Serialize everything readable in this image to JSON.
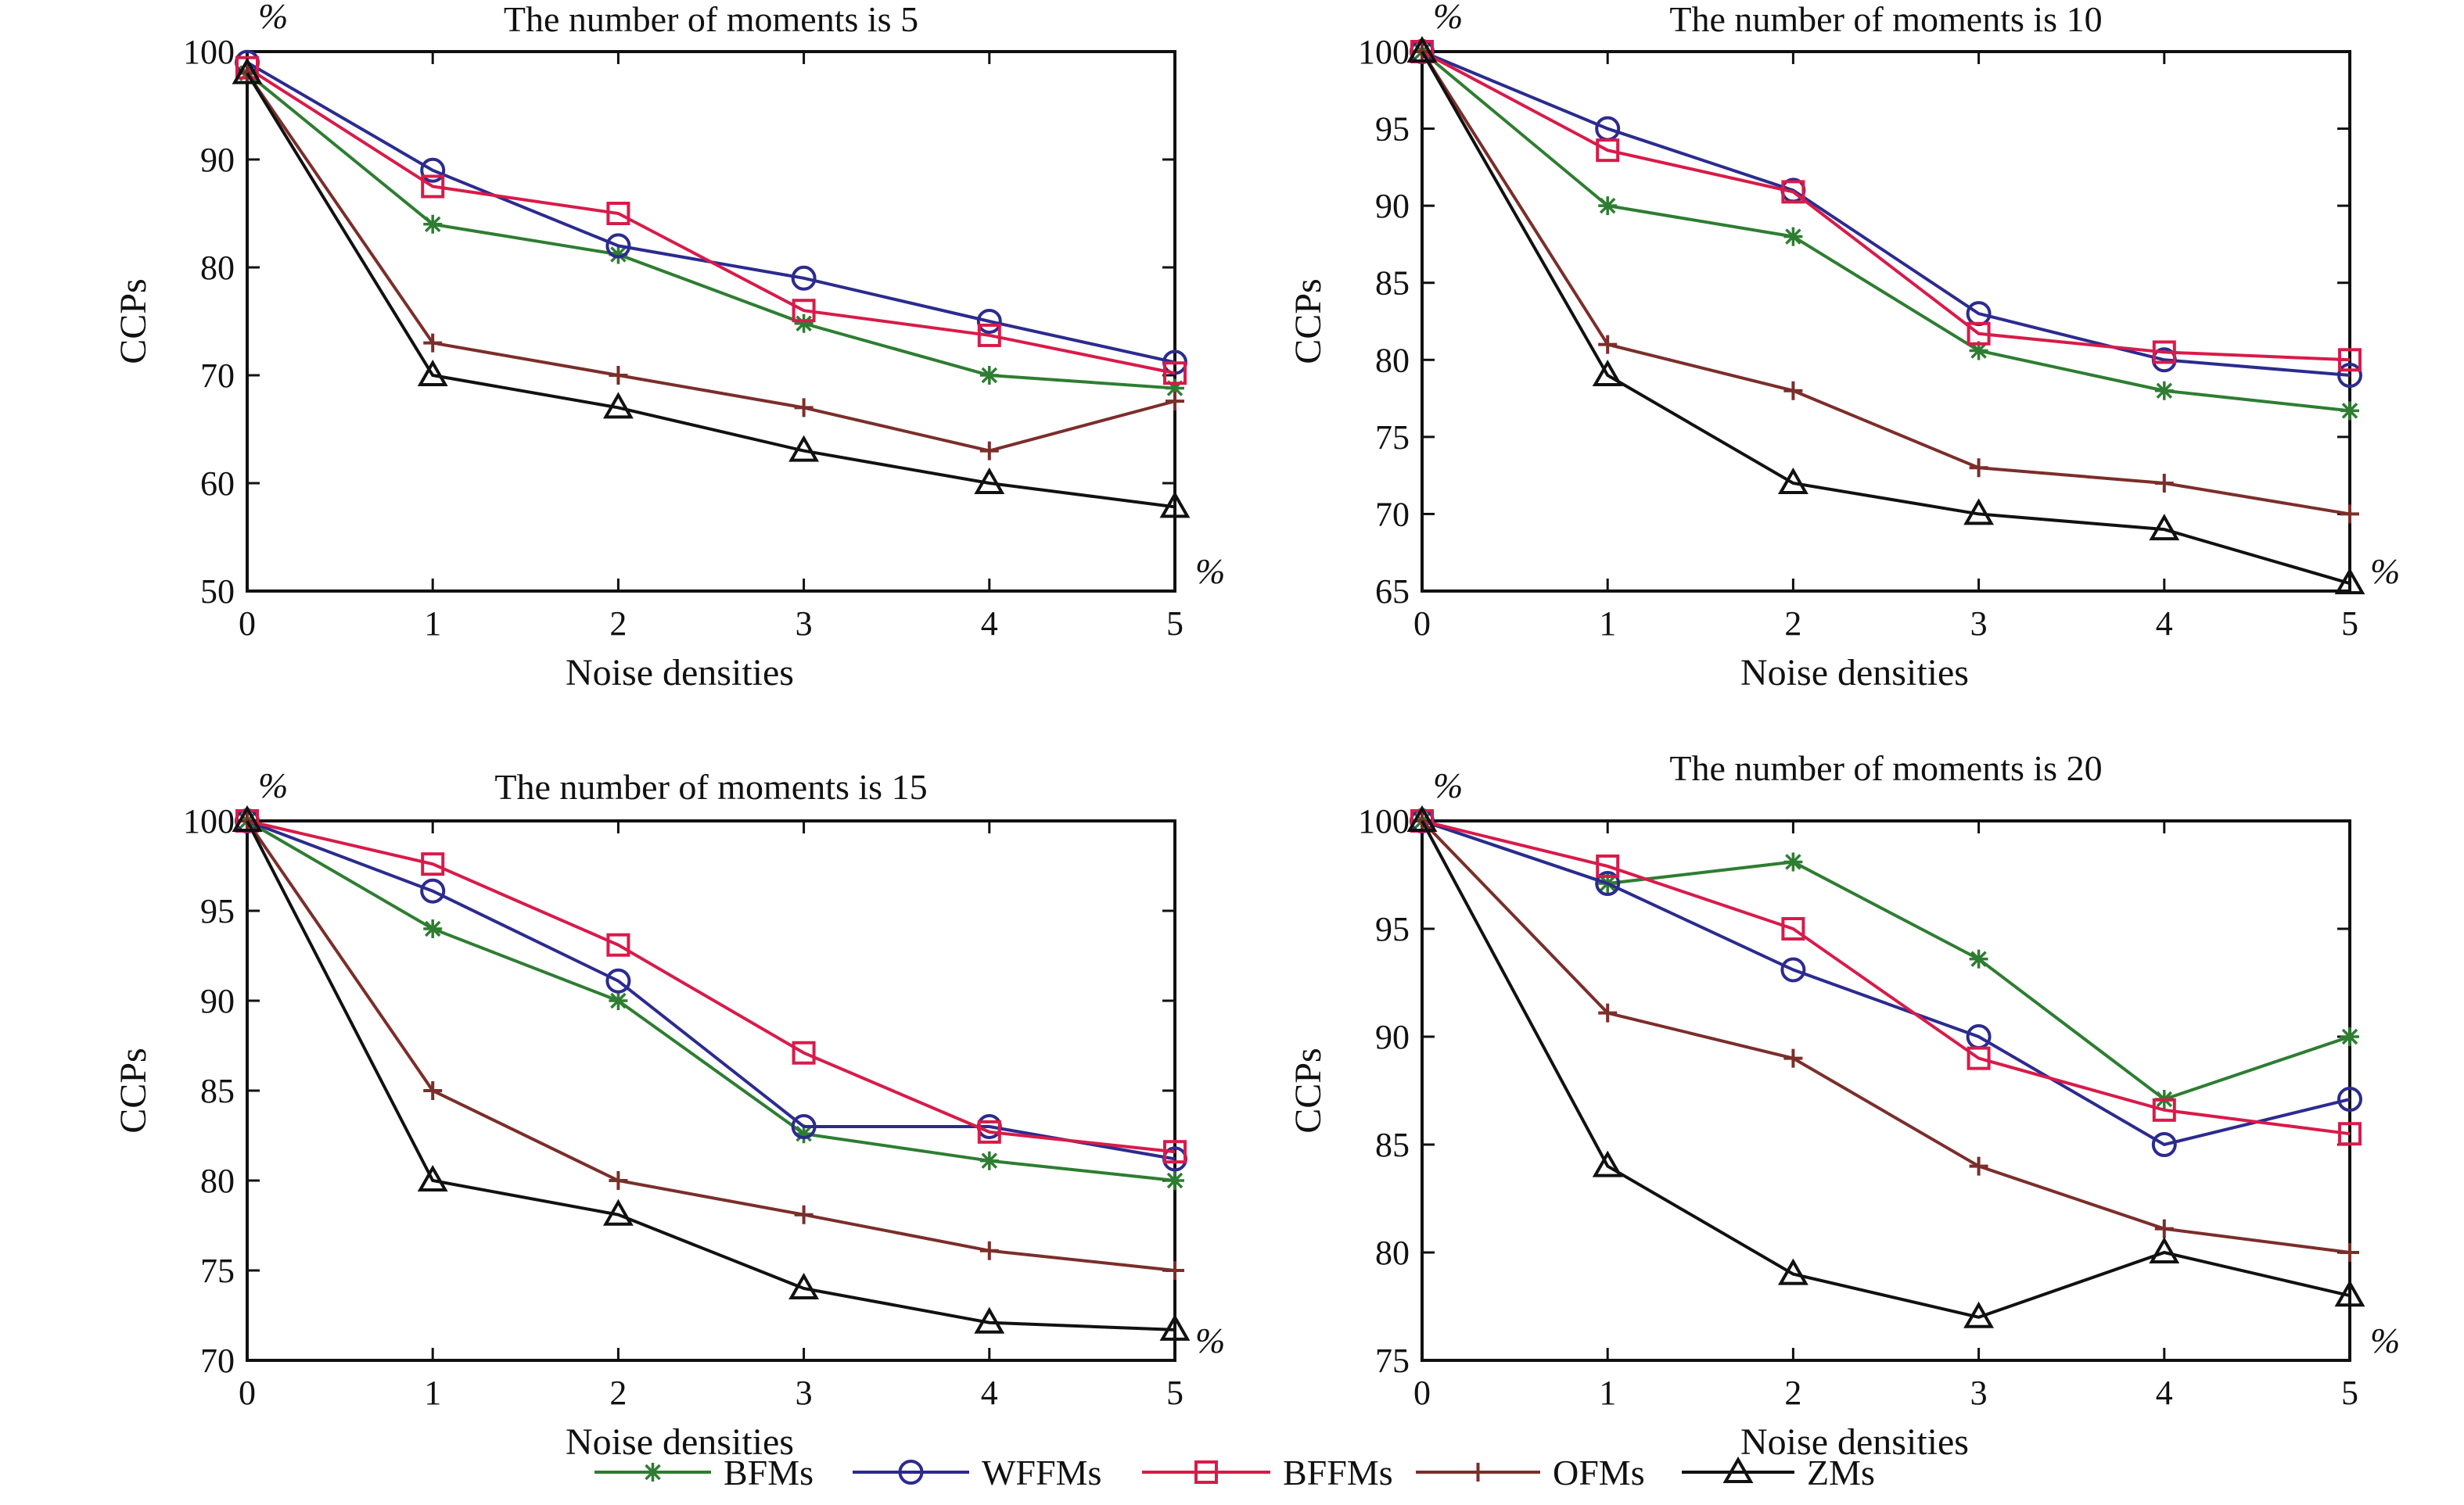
{
  "chart_data": [
    {
      "type": "line",
      "title": "The number of moments is 5",
      "xlabel": "Noise densities",
      "ylabel": "CCPs",
      "x_unit": "%",
      "y_unit": "%",
      "x": [
        0,
        1,
        2,
        3,
        4,
        5
      ],
      "xlim": [
        0,
        5
      ],
      "ylim": [
        50,
        100
      ],
      "yticks": [
        50,
        60,
        70,
        80,
        90,
        100
      ],
      "series": [
        {
          "name": "BFMs",
          "values": [
            98,
            84,
            81.2,
            74.8,
            70,
            68.8
          ]
        },
        {
          "name": "WFFMs",
          "values": [
            99,
            89,
            82,
            79,
            75,
            71.2
          ]
        },
        {
          "name": "BFFMs",
          "values": [
            98.5,
            87.5,
            85,
            76,
            73.7,
            70.2
          ]
        },
        {
          "name": "OFMs",
          "values": [
            98,
            73,
            70,
            67,
            63,
            67.6
          ]
        },
        {
          "name": "ZMs",
          "values": [
            98,
            70,
            67,
            63,
            60,
            57.8
          ]
        }
      ]
    },
    {
      "type": "line",
      "title": "The number of moments is 10",
      "xlabel": "Noise densities",
      "ylabel": "CCPs",
      "x_unit": "%",
      "y_unit": "%",
      "x": [
        0,
        1,
        2,
        3,
        4,
        5
      ],
      "xlim": [
        0,
        5
      ],
      "ylim": [
        65,
        100
      ],
      "yticks": [
        65,
        70,
        75,
        80,
        85,
        90,
        95,
        100
      ],
      "series": [
        {
          "name": "BFMs",
          "values": [
            100,
            90,
            88,
            80.6,
            78,
            76.7
          ]
        },
        {
          "name": "WFFMs",
          "values": [
            100,
            95,
            91,
            83,
            80,
            79
          ]
        },
        {
          "name": "BFFMs",
          "values": [
            100,
            93.6,
            90.9,
            81.7,
            80.5,
            80
          ]
        },
        {
          "name": "OFMs",
          "values": [
            100,
            81,
            78,
            73,
            72,
            70
          ]
        },
        {
          "name": "ZMs",
          "values": [
            100,
            79,
            72,
            70,
            69,
            65.5
          ]
        }
      ]
    },
    {
      "type": "line",
      "title": "The number of moments is 15",
      "xlabel": "Noise densities",
      "ylabel": "CCPs",
      "x_unit": "%",
      "y_unit": "%",
      "x": [
        0,
        1,
        2,
        3,
        4,
        5
      ],
      "xlim": [
        0,
        5
      ],
      "ylim": [
        70,
        100
      ],
      "yticks": [
        70,
        75,
        80,
        85,
        90,
        95,
        100
      ],
      "series": [
        {
          "name": "BFMs",
          "values": [
            100,
            94,
            90,
            82.6,
            81.1,
            80
          ]
        },
        {
          "name": "WFFMs",
          "values": [
            100,
            96.1,
            91.1,
            83,
            83,
            81.2
          ]
        },
        {
          "name": "BFFMs",
          "values": [
            100,
            97.6,
            93.1,
            87.1,
            82.7,
            81.6
          ]
        },
        {
          "name": "OFMs",
          "values": [
            100,
            85,
            80,
            78.1,
            76.1,
            75
          ]
        },
        {
          "name": "ZMs",
          "values": [
            100,
            80,
            78.1,
            74,
            72.1,
            71.7
          ]
        }
      ]
    },
    {
      "type": "line",
      "title": "The number of moments is 20",
      "xlabel": "Noise densities",
      "ylabel": "CCPs",
      "x_unit": "%",
      "y_unit": "%",
      "x": [
        0,
        1,
        2,
        3,
        4,
        5
      ],
      "xlim": [
        0,
        5
      ],
      "ylim": [
        75,
        100
      ],
      "yticks": [
        75,
        80,
        85,
        90,
        95,
        100
      ],
      "series": [
        {
          "name": "BFMs",
          "values": [
            100,
            97.1,
            98.1,
            93.6,
            87.1,
            90
          ]
        },
        {
          "name": "WFFMs",
          "values": [
            100,
            97.1,
            93.1,
            90,
            85,
            87.1
          ]
        },
        {
          "name": "BFFMs",
          "values": [
            100,
            97.9,
            95,
            89,
            86.6,
            85.5
          ]
        },
        {
          "name": "OFMs",
          "values": [
            100,
            91.1,
            89,
            84,
            81.1,
            80
          ]
        },
        {
          "name": "ZMs",
          "values": [
            100,
            84,
            79,
            77,
            80,
            78
          ]
        }
      ]
    }
  ],
  "legend": [
    {
      "name": "BFMs",
      "color": "#2e7d32",
      "marker": "star"
    },
    {
      "name": "WFFMs",
      "color": "#2b2b8f",
      "marker": "circle"
    },
    {
      "name": "BFFMs",
      "color": "#d81b4a",
      "marker": "square"
    },
    {
      "name": "OFMs",
      "color": "#7b2e2a",
      "marker": "plus"
    },
    {
      "name": "ZMs",
      "color": "#111111",
      "marker": "triangle"
    }
  ]
}
